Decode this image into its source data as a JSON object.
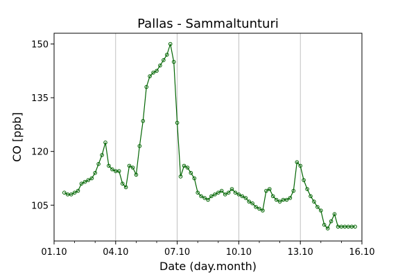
{
  "chart_data": {
    "type": "line",
    "title": "Pallas - Sammaltunturi",
    "xlabel": "Date (day.month)",
    "ylabel": "CO [ppb]",
    "xlim": [
      "01.10",
      "16.10"
    ],
    "ylim": [
      95,
      153
    ],
    "x_ticks": [
      "01.10",
      "04.10",
      "07.10",
      "10.10",
      "13.10",
      "16.10"
    ],
    "y_ticks": [
      105,
      120,
      135,
      150
    ],
    "grid": "vertical",
    "line_color": "#006400",
    "marker": "open-circle",
    "series": [
      {
        "name": "",
        "x": [
          "01.10 12:00",
          "01.10 16:00",
          "01.10 20:00",
          "02.10 00:00",
          "02.10 04:00",
          "02.10 08:00",
          "02.10 12:00",
          "02.10 16:00",
          "02.10 20:00",
          "03.10 00:00",
          "03.10 04:00",
          "03.10 08:00",
          "03.10 12:00",
          "03.10 16:00",
          "03.10 20:00",
          "04.10 00:00",
          "04.10 04:00",
          "04.10 08:00",
          "04.10 12:00",
          "04.10 16:00",
          "04.10 20:00",
          "05.10 00:00",
          "05.10 04:00",
          "05.10 08:00",
          "05.10 12:00",
          "05.10 16:00",
          "05.10 20:00",
          "06.10 00:00",
          "06.10 04:00",
          "06.10 08:00",
          "06.10 12:00",
          "06.10 16:00",
          "06.10 20:00",
          "07.10 00:00",
          "07.10 04:00",
          "07.10 08:00",
          "07.10 12:00",
          "07.10 16:00",
          "07.10 20:00",
          "08.10 00:00",
          "08.10 04:00",
          "08.10 08:00",
          "08.10 12:00",
          "08.10 16:00",
          "08.10 20:00",
          "09.10 00:00",
          "09.10 04:00",
          "09.10 08:00",
          "09.10 12:00",
          "09.10 16:00",
          "09.10 20:00",
          "10.10 00:00",
          "10.10 04:00",
          "10.10 08:00",
          "10.10 12:00",
          "10.10 16:00",
          "10.10 20:00",
          "11.10 00:00",
          "11.10 04:00",
          "11.10 08:00",
          "11.10 12:00",
          "11.10 16:00",
          "11.10 20:00",
          "12.10 00:00",
          "12.10 04:00",
          "12.10 08:00",
          "12.10 12:00",
          "12.10 16:00",
          "12.10 20:00",
          "13.10 00:00",
          "13.10 04:00",
          "13.10 08:00",
          "13.10 12:00",
          "13.10 16:00",
          "13.10 20:00",
          "14.10 00:00",
          "14.10 04:00",
          "14.10 08:00",
          "14.10 12:00",
          "14.10 16:00",
          "14.10 20:00",
          "15.10 00:00",
          "15.10 04:00",
          "15.10 08:00",
          "15.10 12:00",
          "15.10 16:00"
        ],
        "values": [
          108.5,
          108.0,
          108.0,
          108.5,
          109.0,
          111.0,
          111.5,
          112.0,
          112.5,
          114.0,
          116.5,
          119.0,
          122.5,
          116.0,
          115.0,
          114.5,
          114.5,
          111.0,
          110.0,
          116.0,
          115.5,
          113.5,
          121.5,
          128.5,
          138.0,
          141.0,
          142.0,
          142.5,
          144.0,
          145.5,
          147.0,
          150.0,
          145.0,
          128.0,
          113.0,
          116.0,
          115.5,
          114.0,
          112.5,
          108.5,
          107.5,
          107.0,
          106.5,
          107.5,
          108.0,
          108.5,
          109.0,
          108.0,
          108.5,
          109.5,
          108.5,
          108.0,
          107.5,
          107.0,
          106.0,
          105.5,
          104.5,
          104.0,
          103.5,
          109.0,
          109.5,
          107.5,
          106.5,
          106.0,
          106.5,
          106.5,
          107.0,
          109.0,
          117.0,
          116.0,
          112.0,
          109.5,
          107.5,
          106.0,
          104.5,
          103.5,
          99.5,
          98.5,
          100.5,
          102.5,
          99.0,
          99.0,
          99.0,
          99.0,
          99.0,
          99.0
        ]
      }
    ]
  }
}
